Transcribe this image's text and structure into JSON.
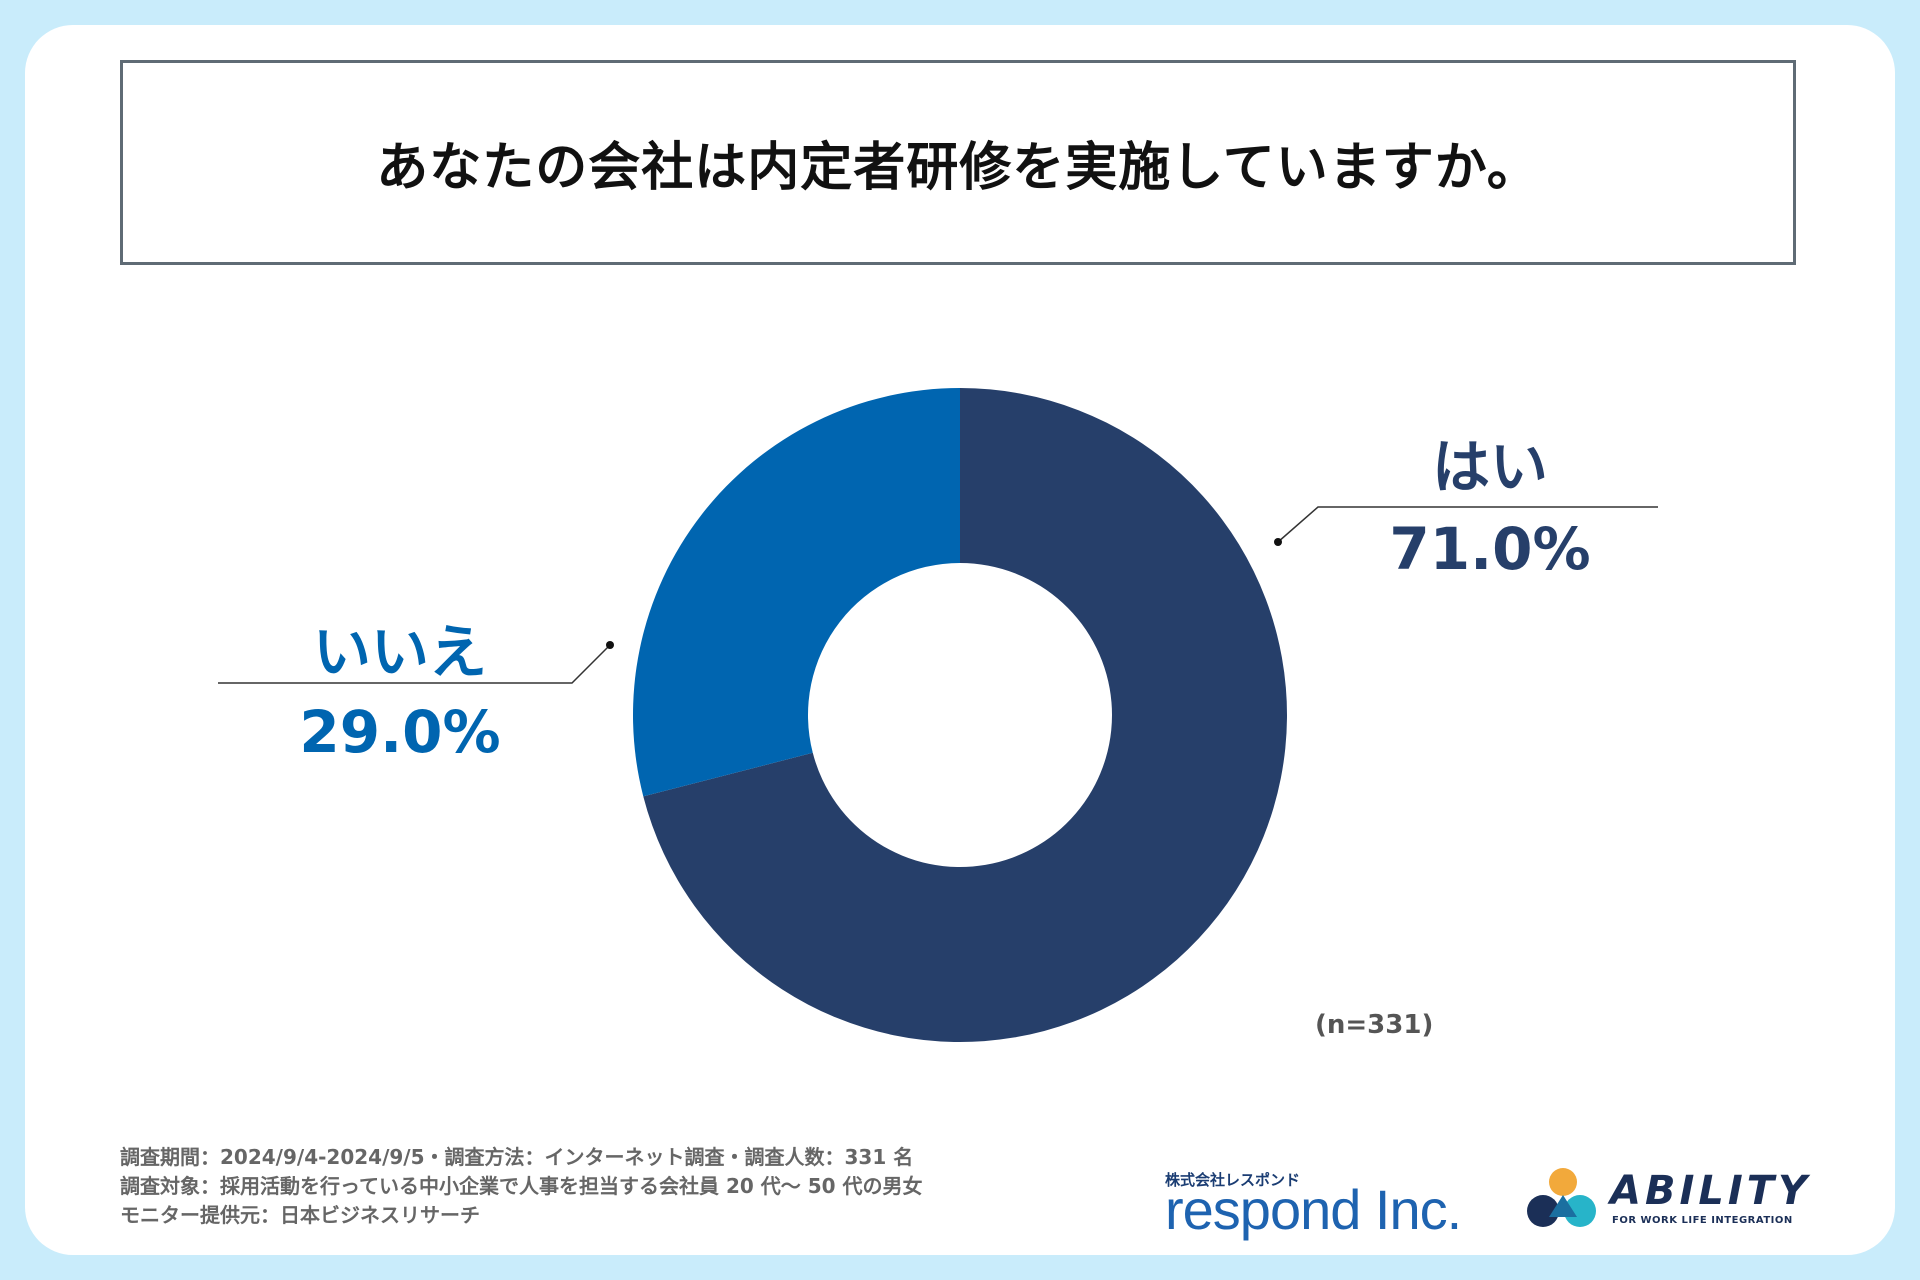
{
  "title": "あなたの会社は内定者研修を実施していますか。",
  "chart_data": {
    "type": "pie",
    "title": "あなたの会社は内定者研修を実施していますか。",
    "categories": [
      "はい",
      "いいえ"
    ],
    "values": [
      71.0,
      29.0
    ],
    "value_labels": [
      "71.0%",
      "29.0%"
    ],
    "colors": [
      "#263f6a",
      "#0065b0"
    ],
    "donut": true,
    "n_label": "(n=331)"
  },
  "notes": [
    "調査期間：2024/9/4-2024/9/5・調査方法：インターネット調査・調査人数：331 名",
    "調査対象：採用活動を行っている中小企業で人事を担当する会社員 20 代〜 50 代の男女",
    "モニター提供元：日本ビジネスリサーチ"
  ],
  "logos": {
    "respond_sub": "株式会社レスポンド",
    "respond_main": "respond Inc.",
    "ability_name": "ABILITY",
    "ability_tag": "FOR WORK LIFE INTEGRATION"
  }
}
